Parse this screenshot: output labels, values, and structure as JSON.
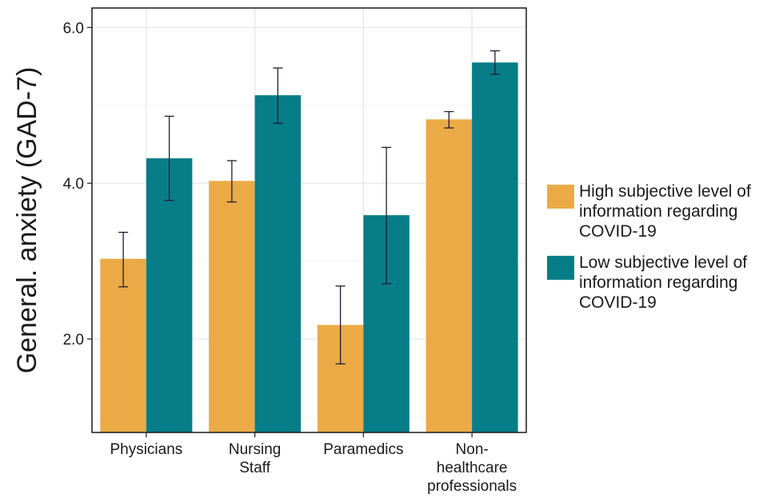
{
  "chart_data": {
    "type": "bar",
    "categories": [
      [
        "Physicians"
      ],
      [
        "Nursing",
        "Staff"
      ],
      [
        "Paramedics"
      ],
      [
        "Non-",
        "healthcare",
        "professionals"
      ]
    ],
    "series": [
      {
        "name": [
          "High subjective level of",
          "information regarding",
          "COVID-19"
        ],
        "color": "#EBAA45",
        "values": [
          3.03,
          4.03,
          2.18,
          4.82
        ],
        "err_low": [
          2.67,
          3.76,
          1.68,
          4.71
        ],
        "err_high": [
          3.37,
          4.29,
          2.68,
          4.92
        ]
      },
      {
        "name": [
          "Low subjective level of",
          "information regarding",
          "COVID-19"
        ],
        "color": "#077D88",
        "values": [
          4.32,
          5.13,
          3.59,
          5.55
        ],
        "err_low": [
          3.78,
          4.77,
          2.71,
          5.4
        ],
        "err_high": [
          4.86,
          5.48,
          4.46,
          5.7
        ]
      }
    ],
    "yticks": [
      "2.0",
      "4.0",
      "6.0"
    ],
    "ylabel": "General. anxiety (GAD-7)",
    "ylim": [
      0.8,
      6.25
    ],
    "grid": true,
    "legend": "right"
  }
}
